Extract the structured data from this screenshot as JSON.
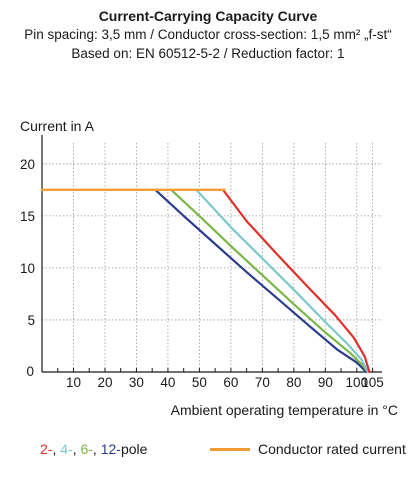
{
  "chart_data": {
    "type": "line",
    "title": "Current-Carrying Capacity Curve",
    "subtitle_lines": [
      "Pin spacing: 3,5 mm / Conductor cross-section: 1,5 mm² „f-st“",
      "Based on: EN 60512-5-2 / Reduction factor: 1"
    ],
    "ylabel": "Current in A",
    "xlabel": "Ambient operating temperature in °C",
    "xlim": [
      0,
      108
    ],
    "ylim": [
      0,
      22
    ],
    "xticks": [
      10,
      20,
      30,
      40,
      50,
      60,
      70,
      80,
      90,
      100,
      105
    ],
    "yticks": [
      0,
      5,
      10,
      15,
      20
    ],
    "grid": true,
    "series": [
      {
        "name": "Conductor rated current",
        "color": "#f39c33",
        "points": [
          [
            0,
            17.5
          ],
          [
            58,
            17.5
          ]
        ]
      },
      {
        "name": "2-pole",
        "color": "#e0302a",
        "points": [
          [
            57.5,
            17.5
          ],
          [
            65,
            14.5
          ],
          [
            75,
            11.2
          ],
          [
            85,
            8.0
          ],
          [
            93,
            5.5
          ],
          [
            99,
            3.3
          ],
          [
            102.5,
            1.5
          ],
          [
            104,
            0
          ]
        ]
      },
      {
        "name": "4-pole",
        "color": "#7cc8cc",
        "points": [
          [
            49,
            17.5
          ],
          [
            60,
            13.9
          ],
          [
            70,
            10.9
          ],
          [
            80,
            7.9
          ],
          [
            90,
            4.8
          ],
          [
            97,
            2.7
          ],
          [
            101.5,
            1.2
          ],
          [
            103.5,
            0
          ]
        ]
      },
      {
        "name": "6-pole",
        "color": "#7ab648",
        "points": [
          [
            41,
            17.5
          ],
          [
            50,
            15.0
          ],
          [
            60,
            12.1
          ],
          [
            70,
            9.3
          ],
          [
            80,
            6.5
          ],
          [
            90,
            3.8
          ],
          [
            98,
            1.8
          ],
          [
            102,
            0.6
          ],
          [
            103.5,
            0
          ]
        ]
      },
      {
        "name": "12-pole",
        "color": "#2b3d8f",
        "points": [
          [
            36,
            17.5
          ],
          [
            45,
            15.0
          ],
          [
            55,
            12.3
          ],
          [
            65,
            9.6
          ],
          [
            75,
            7.0
          ],
          [
            85,
            4.4
          ],
          [
            94,
            2.1
          ],
          [
            100,
            0.9
          ],
          [
            103,
            0
          ]
        ]
      }
    ]
  },
  "legend": {
    "poles": [
      {
        "text": "2-",
        "color": "#e0302a"
      },
      {
        "text": ", ",
        "color": "#1a1a1a"
      },
      {
        "text": "4-",
        "color": "#7cc8cc"
      },
      {
        "text": ", ",
        "color": "#1a1a1a"
      },
      {
        "text": "6-",
        "color": "#7ab648"
      },
      {
        "text": ", ",
        "color": "#1a1a1a"
      },
      {
        "text": "12-",
        "color": "#2b3d8f"
      },
      {
        "text": "pole",
        "color": "#1a1a1a"
      }
    ],
    "rated_label": "Conductor rated current",
    "rated_color": "#f39c33"
  }
}
